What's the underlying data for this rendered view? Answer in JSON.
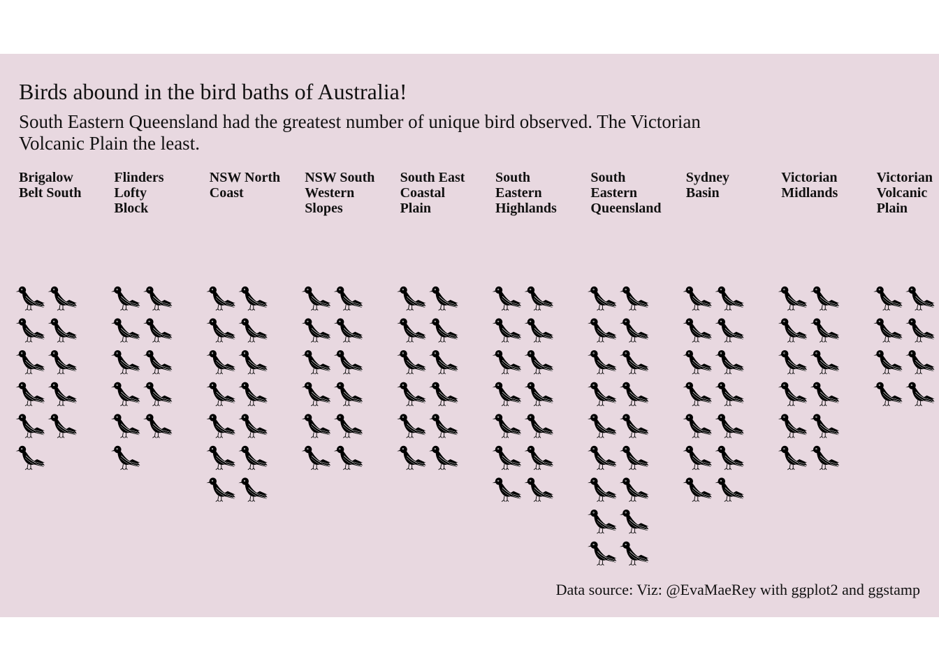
{
  "title": "Birds abound in the bird baths of Australia!",
  "subtitle": "South Eastern Queensland had the greatest number of unique bird observed. The Victorian Volcanic Plain the least.",
  "caption": "Data source:  Viz: @EvaMaeRey with ggplot2 and ggstamp",
  "chart_data": {
    "type": "pictogram",
    "icon": "bird-icon",
    "icons_per_row": 2,
    "categories": [
      "Brigalow Belt South",
      "Flinders Lofty Block",
      "NSW North Coast",
      "NSW South Western Slopes",
      "South East Coastal Plain",
      "South Eastern Highlands",
      "South Eastern Queensland",
      "Sydney Basin",
      "Victorian Midlands",
      "Victorian Volcanic Plain"
    ],
    "facet_labels": [
      [
        "Brigalow",
        "Belt South"
      ],
      [
        "Flinders",
        "Lofty",
        "Block"
      ],
      [
        "NSW North",
        "Coast"
      ],
      [
        "NSW South",
        "Western",
        "Slopes"
      ],
      [
        "South East",
        "Coastal",
        "Plain"
      ],
      [
        "South",
        "Eastern",
        "Highlands"
      ],
      [
        "South",
        "Eastern",
        "Queensland"
      ],
      [
        "Sydney",
        "Basin"
      ],
      [
        "Victorian",
        "Midlands"
      ],
      [
        "Victorian",
        "Volcanic",
        "Plain"
      ]
    ],
    "values": [
      11,
      11,
      14,
      12,
      12,
      14,
      18,
      14,
      12,
      8
    ],
    "background": "#e8d8e0",
    "icon_color": "#000000"
  }
}
